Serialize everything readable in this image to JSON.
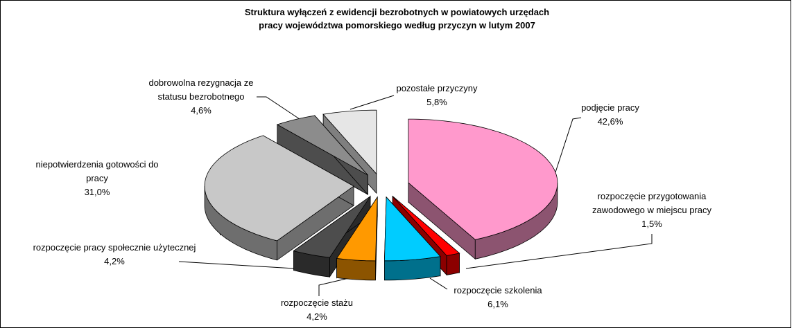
{
  "chart_data": {
    "type": "pie3d",
    "title": "Struktura wyłączeń z ewidencji bezrobotnych w powiatowych urzędach pracy województwa pomorskiego według przyczyn w lutym 2007",
    "categories": [
      "podjęcie pracy",
      "rozpoczęcie przygotowania zawodowego w miejscu pracy",
      "rozpoczęcie szkolenia",
      "rozpoczęcie stażu",
      "rozpoczęcie pracy społecznie użytecznej",
      "niepotwierdzenia gotowości do pracy",
      "dobrowolna rezygnacja ze statusu bezrobotnego",
      "pozostałe przyczyny"
    ],
    "values": [
      42.6,
      1.5,
      6.1,
      4.2,
      4.2,
      31.0,
      4.6,
      5.8
    ],
    "value_labels": [
      "42,6%",
      "1,5%",
      "6,1%",
      "4,2%",
      "4,2%",
      "31,0%",
      "4,6%",
      "5,8%"
    ],
    "colors": [
      "#ff99cc",
      "#ff0000",
      "#00ccff",
      "#ff9900",
      "#4d4d4d",
      "#c8c8c8",
      "#8c8c8c",
      "#e6e6e6"
    ]
  }
}
